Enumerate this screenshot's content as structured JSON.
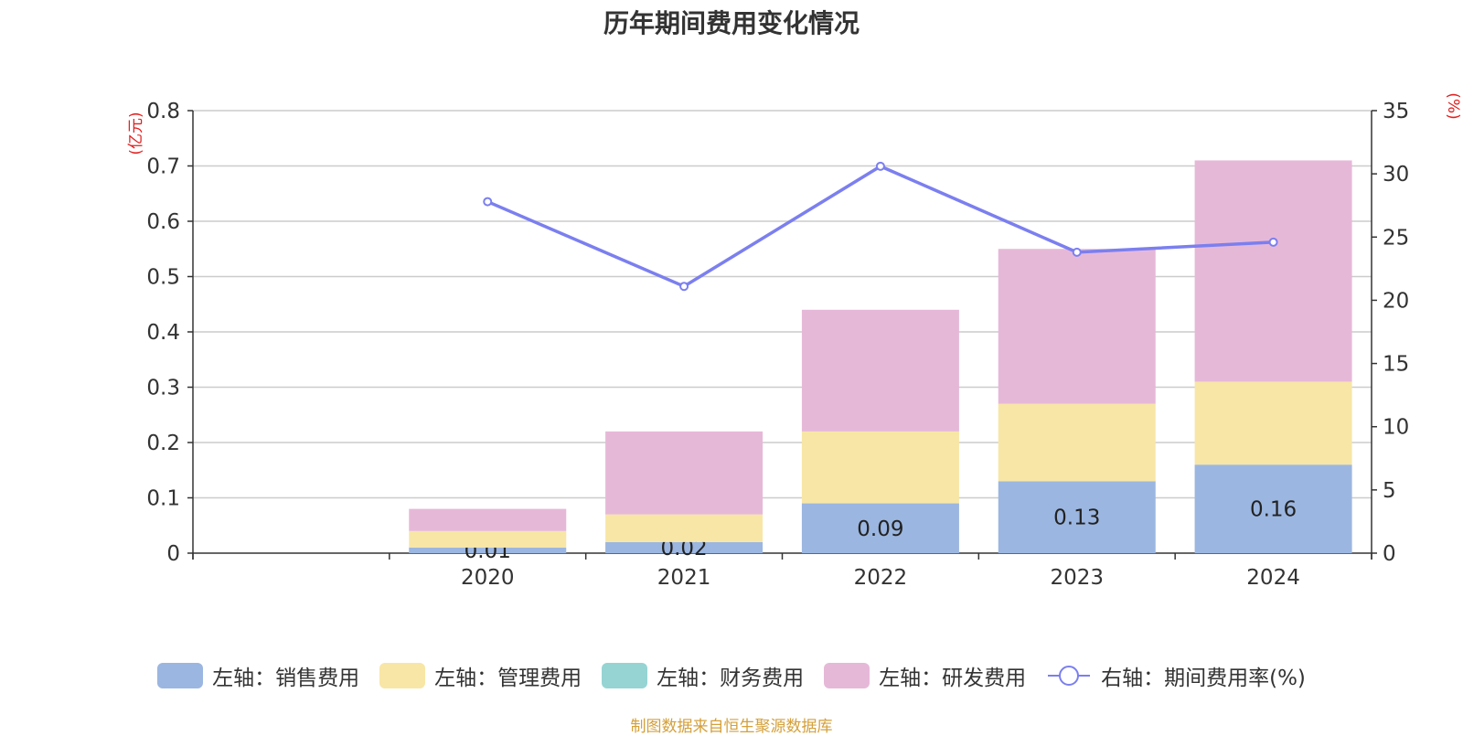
{
  "chart_title": "历年期间费用变化情况",
  "source_note": "制图数据来自恒生聚源数据库",
  "chart_data": {
    "type": "bar",
    "stacked": true,
    "title": "历年期间费用变化情况",
    "categories": [
      "",
      "2020",
      "2021",
      "2022",
      "2023",
      "2024"
    ],
    "left_axis": {
      "unit_label": "(亿元)",
      "range": [
        0,
        0.8
      ],
      "ticks": [
        "0",
        "0.1",
        "0.2",
        "0.3",
        "0.4",
        "0.5",
        "0.6",
        "0.7",
        "0.8"
      ]
    },
    "right_axis": {
      "unit_label": "(%)",
      "range": [
        0,
        35
      ],
      "ticks": [
        "0",
        "5",
        "10",
        "15",
        "20",
        "25",
        "30",
        "35"
      ]
    },
    "grid": true,
    "legend_position": "bottom",
    "series": [
      {
        "name": "左轴：销售费用",
        "type": "bar",
        "axis": "left",
        "color": "#9bb6e0",
        "values": [
          null,
          0.01,
          0.02,
          0.09,
          0.13,
          0.16
        ],
        "labels": [
          "",
          "0.01",
          "0.02",
          "0.09",
          "0.13",
          "0.16"
        ]
      },
      {
        "name": "左轴：管理费用",
        "type": "bar",
        "axis": "left",
        "color": "#f7e6a6",
        "values": [
          null,
          0.03,
          0.05,
          0.13,
          0.14,
          0.15
        ]
      },
      {
        "name": "左轴：财务费用",
        "type": "bar",
        "axis": "left",
        "color": "#96d4d4",
        "values": [
          null,
          0,
          0,
          0,
          0,
          0
        ]
      },
      {
        "name": "左轴：研发费用",
        "type": "bar",
        "axis": "left",
        "color": "#e6b8d8",
        "values": [
          null,
          0.04,
          0.15,
          0.22,
          0.28,
          0.4
        ]
      },
      {
        "name": "右轴：期间费用率(%)",
        "type": "line",
        "axis": "right",
        "color": "#7b7fef",
        "values": [
          null,
          27.8,
          21.1,
          30.6,
          23.8,
          24.6
        ]
      }
    ]
  }
}
